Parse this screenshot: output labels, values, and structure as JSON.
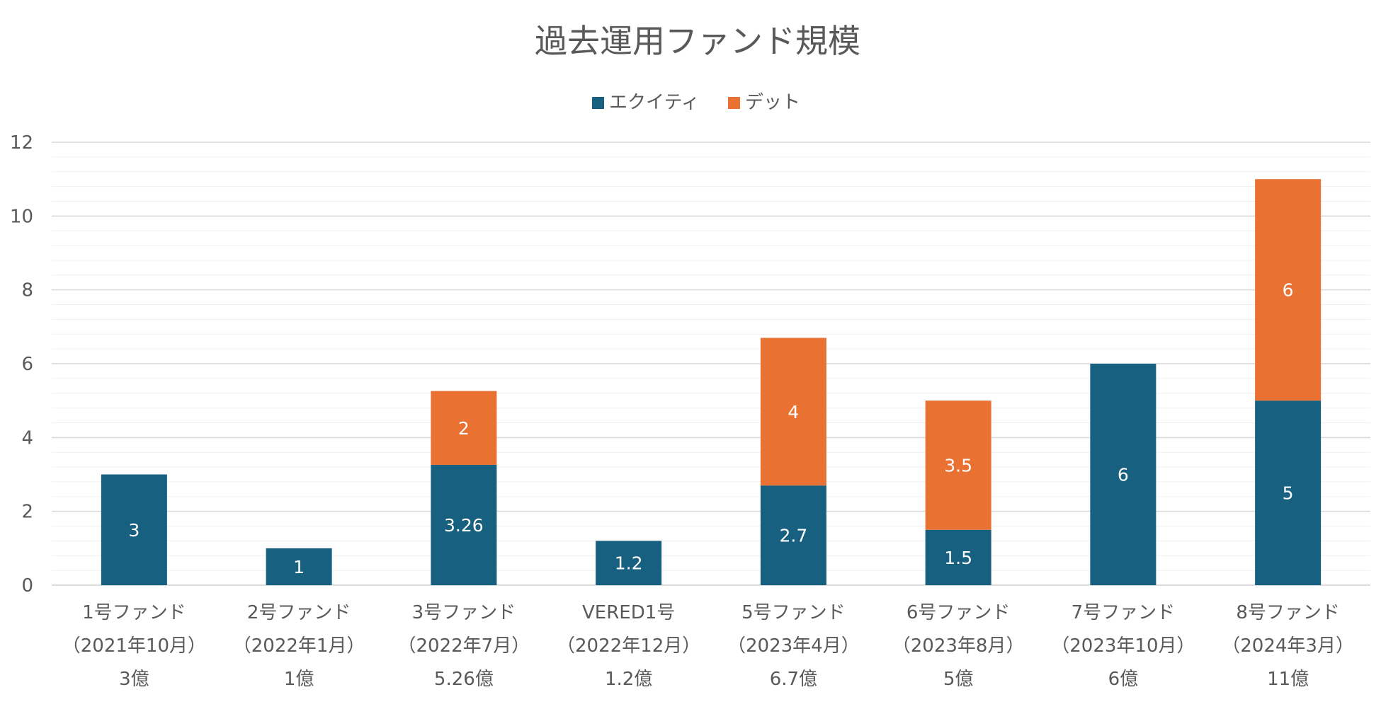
{
  "chart_data": {
    "type": "bar",
    "stacked": true,
    "title": "過去運用ファンド規模",
    "xlabel": "",
    "ylabel": "",
    "ylim": [
      0,
      12
    ],
    "yticks": [
      0,
      2,
      4,
      6,
      8,
      10,
      12
    ],
    "grid": true,
    "legend_position": "top",
    "categories": [
      [
        "1号ファンド",
        "（2021年10月）",
        "3億"
      ],
      [
        "2号ファンド",
        "（2022年1月）",
        "1億"
      ],
      [
        "3号ファンド",
        "（2022年7月）",
        "5.26億"
      ],
      [
        "VERED1号",
        "（2022年12月）",
        "1.2億"
      ],
      [
        "5号ファンド",
        "（2023年4月）",
        "6.7億"
      ],
      [
        "6号ファンド",
        "（2023年8月）",
        "5億"
      ],
      [
        "7号ファンド",
        "（2023年10月）",
        "6億"
      ],
      [
        "8号ファンド",
        "（2024年3月）",
        "11億"
      ]
    ],
    "series": [
      {
        "name": "エクイティ",
        "color": "#17607f",
        "values": [
          3,
          1,
          3.26,
          1.2,
          2.7,
          1.5,
          6,
          5
        ],
        "labels": [
          "3",
          "1",
          "3.26",
          "1.2",
          "2.7",
          "1.5",
          "6",
          "5"
        ]
      },
      {
        "name": "デット",
        "color": "#e97132",
        "values": [
          0,
          0,
          2,
          0,
          4,
          3.5,
          0,
          6
        ],
        "labels": [
          "",
          "",
          "2",
          "",
          "4",
          "3.5",
          "",
          "6"
        ]
      }
    ],
    "colors": {
      "text": "#595959",
      "major_grid": "#d9d9d9",
      "minor_grid": "#f0f0f0",
      "label": "#ffffff"
    }
  }
}
